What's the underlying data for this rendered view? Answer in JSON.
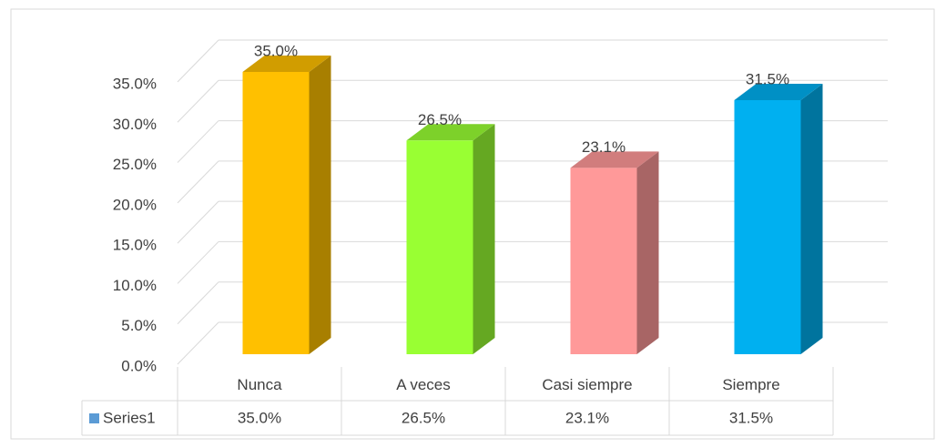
{
  "chart_data": {
    "type": "bar3d",
    "categories": [
      "Nunca",
      "A veces",
      "Casi siempre",
      "Siempre"
    ],
    "series": [
      {
        "name": "Series1",
        "color": "#5B9BD5",
        "colors": [
          "#FFC000",
          "#99FF33",
          "#FF9999",
          "#00B0F0"
        ],
        "values": [
          35,
          26.5,
          23.1,
          31.5
        ],
        "value_labels": [
          "35.0%",
          "26.5%",
          "23.1%",
          "31.5%"
        ]
      }
    ],
    "ylim": [
      0,
      35
    ],
    "yticks": [
      {
        "value": 0,
        "label": "0.0%"
      },
      {
        "value": 5,
        "label": "5.0%"
      },
      {
        "value": 10,
        "label": "10.0%"
      },
      {
        "value": 15,
        "label": "15.0%"
      },
      {
        "value": 20,
        "label": "20.0%"
      },
      {
        "value": 25,
        "label": "25.0%"
      },
      {
        "value": 30,
        "label": "30.0%"
      },
      {
        "value": 35,
        "label": "35.0%"
      }
    ],
    "grid": true,
    "data_table": true
  }
}
